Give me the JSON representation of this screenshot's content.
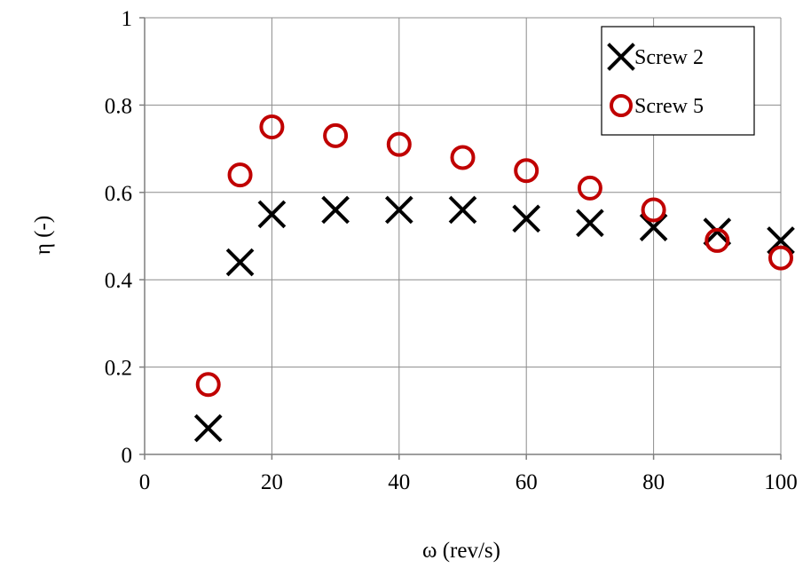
{
  "chart_data": {
    "type": "scatter",
    "xlabel": "ω (rev/s)",
    "ylabel": "η (-)",
    "xlim": [
      0,
      100
    ],
    "ylim": [
      0,
      1
    ],
    "xticks": [
      0,
      20,
      40,
      60,
      80,
      100
    ],
    "yticks": [
      0,
      0.2,
      0.4,
      0.6,
      0.8,
      1
    ],
    "ytick_labels": [
      "0",
      "0.2",
      "0.4",
      "0.6",
      "0.8",
      "1"
    ],
    "grid": true,
    "legend_position": "top-right",
    "series": [
      {
        "name": "Screw 2",
        "marker": "x",
        "color": "#000000",
        "x": [
          10,
          15,
          20,
          30,
          40,
          50,
          60,
          70,
          80,
          90,
          100
        ],
        "y": [
          0.06,
          0.44,
          0.55,
          0.56,
          0.56,
          0.56,
          0.54,
          0.53,
          0.52,
          0.51,
          0.49
        ]
      },
      {
        "name": "Screw 5",
        "marker": "circle",
        "color": "#c00000",
        "x": [
          10,
          15,
          20,
          30,
          40,
          50,
          60,
          70,
          80,
          90,
          100
        ],
        "y": [
          0.16,
          0.64,
          0.75,
          0.73,
          0.71,
          0.68,
          0.65,
          0.61,
          0.56,
          0.49,
          0.45
        ]
      }
    ]
  }
}
